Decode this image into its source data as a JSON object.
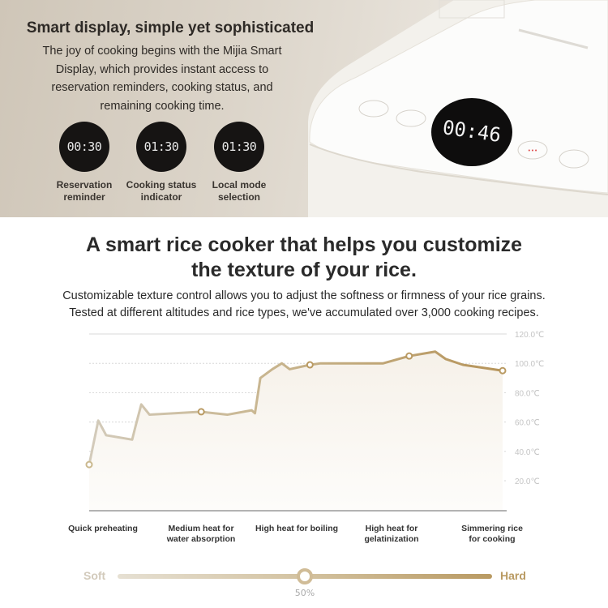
{
  "hero": {
    "title": "Smart display, simple yet sophisticated",
    "description_lines": [
      "The joy of cooking begins with the Mijia Smart",
      "Display, which provides instant access to",
      "reservation reminders, cooking status, and",
      "remaining cooking time."
    ],
    "displays": [
      {
        "time": "00:30",
        "label_lines": [
          "Reservation",
          "reminder"
        ]
      },
      {
        "time": "01:30",
        "label_lines": [
          "Cooking status",
          "indicator"
        ]
      },
      {
        "time": "01:30",
        "label_lines": [
          "Local mode",
          "selection"
        ]
      }
    ],
    "cooker_display_time": "00:46"
  },
  "section": {
    "headline_lines": [
      "A smart rice cooker that helps you customize",
      "the texture of your rice."
    ],
    "subtitle_lines": [
      "Customizable texture control allows you to adjust the softness or firmness of your rice grains.",
      "Tested at different altitudes and rice types, we've accumulated over 3,000 cooking recipes."
    ]
  },
  "chart_data": {
    "type": "line",
    "y_unit": "℃",
    "ylim": [
      0,
      120
    ],
    "y_ticks": [
      "120.0℃",
      "100.0℃",
      "80.0℃",
      "60.0℃",
      "40.0℃",
      "20.0℃"
    ],
    "y_tick_values": [
      120,
      100,
      80,
      60,
      40,
      20
    ],
    "grid": true,
    "stages": [
      {
        "label_lines": [
          "Quick preheating"
        ]
      },
      {
        "label_lines": [
          "Medium heat for",
          "water absorption"
        ]
      },
      {
        "label_lines": [
          "High heat for boiling"
        ]
      },
      {
        "label_lines": [
          "High heat for",
          "gelatinization"
        ]
      },
      {
        "label_lines": [
          "Simmering rice",
          "for cooking"
        ]
      }
    ],
    "series": [
      {
        "color": "#b99a62",
        "x": [
          0,
          2.2,
          4.1,
          10.4,
          11.2,
          12.6,
          14.6,
          27.1,
          33.4,
          39.3,
          40.1,
          41.4,
          44.3,
          46.6,
          48.5,
          53.4,
          56,
          71.1,
          77.4,
          83.7,
          86.2,
          90.4,
          100
        ],
        "y": [
          31,
          61,
          51,
          48,
          57,
          72,
          65,
          67,
          65,
          68,
          66,
          90,
          96,
          100,
          96,
          99,
          100,
          100,
          105,
          108,
          103,
          99,
          95
        ],
        "markers": [
          0,
          7,
          15,
          18,
          22
        ]
      }
    ]
  },
  "texture_slider": {
    "min_label": "Soft",
    "max_label": "Hard",
    "value": 50,
    "value_label": "50%"
  },
  "colors": {
    "accent": "#b99a62",
    "start": "#cfc7b8"
  }
}
